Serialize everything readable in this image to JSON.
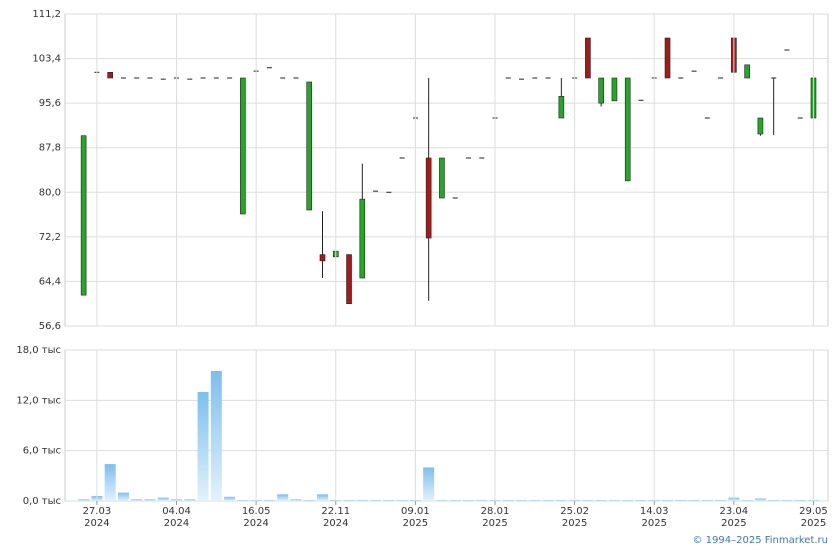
{
  "chart_data": [
    {
      "type": "candlestick",
      "open": [
        62.0,
        101.0,
        101.0,
        100.0,
        100.0,
        100.0,
        99.8,
        100.0,
        99.8,
        100.0,
        100.0,
        100.0,
        76.2,
        101.2,
        101.8,
        100.0,
        100.0,
        76.9,
        69.1,
        68.7,
        69.1,
        65.0,
        80.2,
        80.0,
        86.0,
        93.0,
        86.0,
        79.0,
        79.0,
        86.0,
        86.0,
        93.0,
        100.0,
        99.8,
        100.0,
        100.0,
        93.0,
        100.0,
        107.0,
        95.6,
        96.0,
        82.0,
        96.1,
        100.0,
        107.0,
        100.0,
        101.2,
        93.0,
        100.0,
        107.0,
        100.0,
        90.2,
        100.0,
        104.9,
        93.0,
        93.0
      ],
      "high": [
        89.9,
        101.0,
        101.0,
        100.0,
        100.0,
        100.0,
        99.8,
        100.0,
        99.8,
        100.0,
        100.0,
        100.0,
        100.0,
        101.2,
        101.8,
        100.0,
        100.0,
        99.3,
        76.7,
        69.7,
        69.1,
        85.0,
        80.2,
        80.0,
        86.0,
        93.0,
        100.0,
        86.0,
        79.0,
        86.0,
        86.0,
        93.0,
        100.0,
        99.8,
        100.0,
        100.0,
        100.0,
        100.0,
        107.0,
        100.0,
        100.0,
        100.0,
        96.1,
        100.0,
        107.0,
        100.0,
        101.2,
        93.0,
        100.0,
        107.0,
        102.3,
        93.0,
        100.0,
        104.9,
        93.0,
        100.0
      ],
      "low": [
        62.0,
        101.0,
        100.0,
        100.0,
        100.0,
        100.0,
        99.8,
        100.0,
        99.8,
        100.0,
        100.0,
        100.0,
        76.2,
        101.2,
        101.8,
        100.0,
        100.0,
        76.9,
        65.0,
        68.7,
        60.5,
        65.0,
        80.2,
        80.0,
        86.0,
        93.0,
        61.0,
        79.0,
        79.0,
        86.0,
        86.0,
        93.0,
        100.0,
        99.8,
        100.0,
        100.0,
        93.0,
        100.0,
        100.0,
        95.0,
        96.0,
        82.0,
        96.1,
        100.0,
        100.0,
        100.0,
        101.2,
        93.0,
        100.0,
        101.0,
        100.0,
        89.9,
        90.0,
        104.9,
        93.0,
        93.0
      ],
      "close": [
        89.9,
        101.0,
        100.0,
        100.0,
        100.0,
        100.0,
        99.8,
        100.0,
        99.8,
        100.0,
        100.0,
        100.0,
        100.0,
        101.2,
        101.8,
        100.0,
        100.0,
        99.3,
        68.0,
        69.7,
        60.5,
        78.8,
        80.2,
        80.0,
        86.0,
        93.0,
        72.0,
        86.0,
        79.0,
        86.0,
        86.0,
        93.0,
        100.0,
        99.8,
        100.0,
        100.0,
        96.8,
        100.0,
        100.0,
        100.0,
        100.0,
        100.0,
        96.1,
        100.0,
        100.0,
        100.0,
        101.2,
        93.0,
        100.0,
        101.0,
        102.3,
        93.0,
        100.0,
        104.9,
        93.0,
        100.0
      ],
      "up_color": "#22a822",
      "down_color": "#a81818",
      "ylim": [
        56.6,
        111.2
      ],
      "yticks": [
        {
          "value": 56.6,
          "label": "56,6"
        },
        {
          "value": 64.4,
          "label": "64,4"
        },
        {
          "value": 72.2,
          "label": "72,2"
        },
        {
          "value": 80.0,
          "label": "80,0"
        },
        {
          "value": 87.8,
          "label": "87,8"
        },
        {
          "value": 95.6,
          "label": "95,6"
        },
        {
          "value": 103.4,
          "label": "103,4"
        },
        {
          "value": 111.2,
          "label": "111,2"
        }
      ],
      "grid": true
    },
    {
      "type": "bar",
      "categories": [
        null,
        "27.03\n2024",
        null,
        null,
        null,
        null,
        null,
        "04.04\n2024",
        null,
        null,
        null,
        null,
        null,
        "16.05\n2024",
        null,
        null,
        null,
        null,
        null,
        "22.11\n2024",
        null,
        null,
        null,
        null,
        null,
        "09.01\n2025",
        null,
        null,
        null,
        null,
        null,
        "28.01\n2025",
        null,
        null,
        null,
        null,
        null,
        "25.02\n2025",
        null,
        null,
        null,
        null,
        null,
        "14.03\n2025",
        null,
        null,
        null,
        null,
        null,
        "23.04\n2025",
        null,
        null,
        null,
        null,
        null,
        "29.05\n2025"
      ],
      "values": [
        0.2,
        0.6,
        4.4,
        1.0,
        0.2,
        0.2,
        0.4,
        0.2,
        0.2,
        13.0,
        15.5,
        0.5,
        0.1,
        0.1,
        0.1,
        0.8,
        0.2,
        0.1,
        0.8,
        0.1,
        0.1,
        0.1,
        0.1,
        0.1,
        0.1,
        0.1,
        4.0,
        0.1,
        0.1,
        0.1,
        0.1,
        0.1,
        0.1,
        0.1,
        0.1,
        0.1,
        0.1,
        0.1,
        0.1,
        0.1,
        0.1,
        0.1,
        0.1,
        0.1,
        0.1,
        0.1,
        0.1,
        0.1,
        0.1,
        0.4,
        0.1,
        0.3,
        0.1,
        0.1,
        0.1,
        0.1
      ],
      "color": "#7cbfee",
      "ylim": [
        0,
        18
      ],
      "yticks": [
        {
          "value": 0,
          "label": "0,0 тыс"
        },
        {
          "value": 6,
          "label": "6,0 тыс"
        },
        {
          "value": 12,
          "label": "12,0 тыс"
        },
        {
          "value": 18,
          "label": "18,0 тыс"
        }
      ],
      "grid": true
    }
  ],
  "footer": "© 1994–2025 Finmarket.ru"
}
